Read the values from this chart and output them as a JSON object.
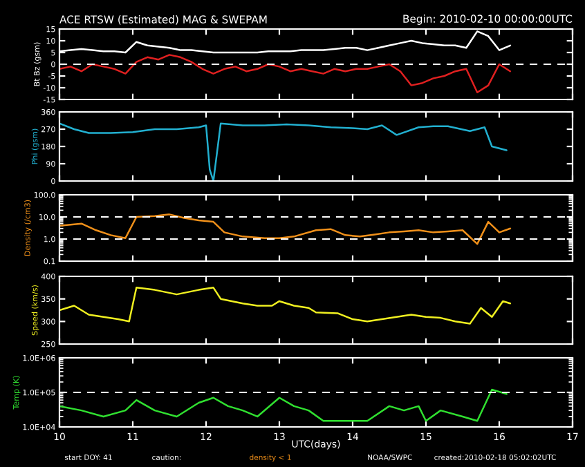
{
  "chart_data": [
    {
      "type": "line",
      "title": "ACE RTSW (Estimated) MAG & SWEPAM",
      "ylabel": "Bt Bz (gsm)",
      "annotations": [
        "Begin: 2010-02-10 00:00:00UTC"
      ],
      "xlim": [
        10,
        17
      ],
      "xticks": [
        10,
        11,
        12,
        13,
        14,
        15,
        16,
        17
      ],
      "ylim": [
        -15,
        15
      ],
      "yticks": [
        -15,
        -10,
        -5,
        0,
        5,
        10,
        15
      ],
      "tick_labels": "y",
      "ref_lines": [
        {
          "axis": "y",
          "value": 0,
          "line_style": "dashed",
          "color": "#ffffff"
        }
      ],
      "series": [
        {
          "color": "#ffffff",
          "x": [
            10.0,
            10.15,
            10.3,
            10.45,
            10.6,
            10.75,
            10.9,
            11.05,
            11.2,
            11.35,
            11.5,
            11.65,
            11.8,
            11.95,
            12.1,
            12.25,
            12.4,
            12.55,
            12.7,
            12.85,
            13.0,
            13.15,
            13.3,
            13.45,
            13.6,
            13.75,
            13.9,
            14.05,
            14.2,
            14.35,
            14.5,
            14.65,
            14.8,
            14.95,
            15.1,
            15.25,
            15.4,
            15.55,
            15.7,
            15.85,
            16.0,
            16.15
          ],
          "values": [
            5.5,
            6,
            6.5,
            6,
            5.5,
            5.5,
            5,
            9.5,
            8,
            7.5,
            7,
            6,
            6,
            5.5,
            5,
            5,
            5,
            5,
            5,
            5.5,
            5.5,
            5.5,
            6,
            6,
            6,
            6.5,
            7,
            7,
            6,
            7,
            8,
            9,
            10,
            9,
            8.5,
            8,
            8,
            7,
            14,
            12,
            6,
            8
          ]
        },
        {
          "color": "#e02020",
          "x": [
            10.0,
            10.15,
            10.3,
            10.45,
            10.6,
            10.75,
            10.9,
            11.05,
            11.2,
            11.35,
            11.5,
            11.65,
            11.8,
            11.95,
            12.1,
            12.25,
            12.4,
            12.55,
            12.7,
            12.85,
            13.0,
            13.15,
            13.3,
            13.45,
            13.6,
            13.75,
            13.9,
            14.05,
            14.2,
            14.35,
            14.5,
            14.65,
            14.8,
            14.95,
            15.1,
            15.25,
            15.4,
            15.55,
            15.7,
            15.85,
            16.0,
            16.15
          ],
          "values": [
            -2,
            -1,
            -3,
            0,
            -1,
            -2,
            -4,
            1,
            3,
            2,
            4,
            3,
            1,
            -2,
            -4,
            -2,
            -1,
            -3,
            -2,
            0,
            -1,
            -3,
            -2,
            -3,
            -4,
            -2,
            -3,
            -2,
            -2,
            -1,
            0,
            -3,
            -9,
            -8,
            -6,
            -5,
            -3,
            -2,
            -12,
            -9,
            0,
            -3
          ]
        }
      ]
    },
    {
      "type": "line",
      "ylabel": "Phi (gsm)",
      "xlim": [
        10,
        17
      ],
      "xticks": [
        10,
        11,
        12,
        13,
        14,
        15,
        16,
        17
      ],
      "ylim": [
        0,
        360
      ],
      "yticks": [
        0,
        90,
        180,
        270,
        360
      ],
      "tick_labels": "y",
      "series": [
        {
          "color": "#22b0d0",
          "x": [
            10.0,
            10.2,
            10.4,
            10.7,
            11.0,
            11.3,
            11.6,
            11.9,
            12.0,
            12.05,
            12.1,
            12.2,
            12.5,
            12.8,
            13.1,
            13.4,
            13.7,
            14.0,
            14.2,
            14.4,
            14.6,
            14.9,
            15.1,
            15.3,
            15.6,
            15.8,
            15.9,
            16.1
          ],
          "values": [
            300,
            270,
            250,
            250,
            255,
            270,
            270,
            280,
            290,
            60,
            0,
            300,
            290,
            290,
            295,
            290,
            280,
            275,
            270,
            290,
            240,
            280,
            285,
            285,
            260,
            280,
            180,
            160
          ]
        }
      ]
    },
    {
      "type": "line",
      "ylabel": "Density (/cm3)",
      "log": true,
      "xlim": [
        10,
        17
      ],
      "xticks": [
        10,
        11,
        12,
        13,
        14,
        15,
        16,
        17
      ],
      "ylim": [
        0.1,
        100
      ],
      "yticks": [
        {
          "value": 0.1,
          "label": "0.1"
        },
        {
          "value": 1,
          "label": "1.0"
        },
        {
          "value": 10,
          "label": "10.0"
        },
        {
          "value": 100,
          "label": "100.0"
        }
      ],
      "tick_labels": "y",
      "ref_lines": [
        {
          "axis": "y",
          "value": 1,
          "line_style": "dashed",
          "color": "#ffffff"
        },
        {
          "axis": "y",
          "value": 10,
          "line_style": "dashed",
          "color": "#ffffff"
        }
      ],
      "series": [
        {
          "color": "#f0901a",
          "x": [
            10.0,
            10.3,
            10.5,
            10.7,
            10.9,
            11.05,
            11.3,
            11.5,
            11.7,
            11.9,
            12.1,
            12.25,
            12.5,
            12.8,
            13.0,
            13.2,
            13.5,
            13.7,
            13.9,
            14.1,
            14.3,
            14.5,
            14.7,
            14.9,
            15.1,
            15.3,
            15.5,
            15.7,
            15.85,
            16.0,
            16.15
          ],
          "values": [
            4,
            5,
            2.5,
            1.5,
            1.1,
            10,
            11,
            13,
            9,
            7,
            6,
            2,
            1.3,
            1.1,
            1.1,
            1.3,
            2.5,
            2.8,
            1.5,
            1.3,
            1.6,
            2,
            2.2,
            2.5,
            2,
            2.2,
            2.5,
            0.6,
            6,
            2,
            3
          ]
        }
      ]
    },
    {
      "type": "line",
      "ylabel": "Speed (km/s)",
      "xlim": [
        10,
        17
      ],
      "xticks": [
        10,
        11,
        12,
        13,
        14,
        15,
        16,
        17
      ],
      "ylim": [
        250,
        400
      ],
      "yticks": [
        250,
        300,
        350,
        400
      ],
      "tick_labels": "y",
      "series": [
        {
          "color": "#f0f020",
          "x": [
            10.0,
            10.2,
            10.4,
            10.6,
            10.8,
            10.95,
            11.05,
            11.3,
            11.6,
            11.9,
            12.1,
            12.2,
            12.5,
            12.7,
            12.9,
            13.0,
            13.2,
            13.4,
            13.5,
            13.8,
            14.0,
            14.2,
            14.4,
            14.6,
            14.8,
            15.0,
            15.2,
            15.4,
            15.6,
            15.75,
            15.9,
            16.05,
            16.15
          ],
          "values": [
            325,
            335,
            315,
            310,
            305,
            300,
            375,
            370,
            360,
            370,
            375,
            350,
            340,
            335,
            335,
            345,
            335,
            330,
            320,
            318,
            305,
            300,
            305,
            310,
            315,
            310,
            308,
            300,
            295,
            330,
            310,
            345,
            340
          ]
        }
      ]
    },
    {
      "type": "line",
      "ylabel": "Temp (K)",
      "xlabel": "UTC(days)",
      "log": true,
      "xlim": [
        10,
        17
      ],
      "xticks": [
        10,
        11,
        12,
        13,
        14,
        15,
        16,
        17
      ],
      "ylim": [
        10000,
        1000000
      ],
      "yticks": [
        {
          "value": 10000,
          "label": "1.0E+04"
        },
        {
          "value": 100000,
          "label": "1.0E+05"
        },
        {
          "value": 1000000,
          "label": "1.0E+06"
        }
      ],
      "ref_lines": [
        {
          "axis": "y",
          "value": 100000,
          "line_style": "dashed",
          "color": "#ffffff"
        }
      ],
      "annotations": [
        "start DOY: 41",
        "caution:",
        "density < 1",
        "NOAA/SWPC",
        "created:2010-02-18 05:02:02UTC"
      ],
      "series": [
        {
          "color": "#30e030",
          "x": [
            10.0,
            10.3,
            10.6,
            10.9,
            11.05,
            11.3,
            11.6,
            11.9,
            12.1,
            12.3,
            12.5,
            12.7,
            13.0,
            13.2,
            13.4,
            13.6,
            13.9,
            14.2,
            14.5,
            14.7,
            14.9,
            15.0,
            15.2,
            15.5,
            15.7,
            15.9,
            16.1
          ],
          "values": [
            40000,
            30000,
            20000,
            30000,
            60000,
            30000,
            20000,
            50000,
            70000,
            40000,
            30000,
            20000,
            70000,
            40000,
            30000,
            15000,
            15000,
            15000,
            40000,
            30000,
            40000,
            15000,
            30000,
            20000,
            15000,
            120000,
            90000
          ]
        }
      ]
    }
  ]
}
